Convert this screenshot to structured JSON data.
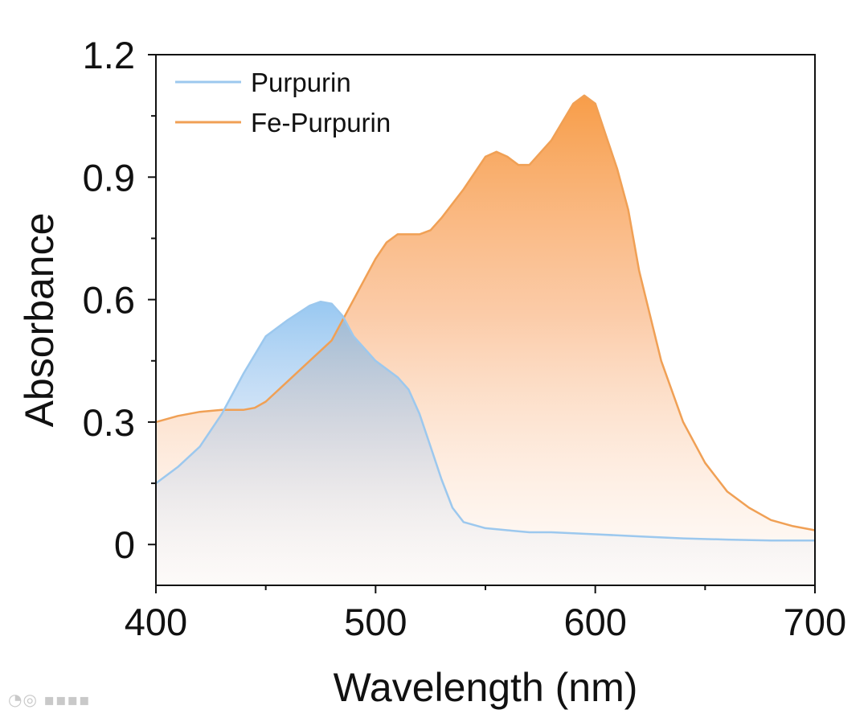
{
  "chart_data": {
    "type": "area",
    "xlabel": "Wavelength (nm)",
    "ylabel": "Absorbance",
    "xlim": [
      400,
      700
    ],
    "ylim": [
      -0.1,
      1.2
    ],
    "xticks": [
      400,
      500,
      600,
      700
    ],
    "xtick_labels": [
      "400",
      "500",
      "600",
      "700"
    ],
    "yticks": [
      0,
      0.3,
      0.6,
      0.9,
      1.2
    ],
    "ytick_labels": [
      "0",
      "0.3",
      "0.6",
      "0.9",
      "1.2"
    ],
    "legend_position": "top-left",
    "series": [
      {
        "name": "Purpurin",
        "color": "#9cc8ee",
        "fill_color": "#7db8ea",
        "x": [
          400,
          410,
          420,
          430,
          440,
          450,
          460,
          470,
          475,
          480,
          485,
          490,
          500,
          510,
          515,
          520,
          525,
          530,
          535,
          540,
          550,
          560,
          570,
          580,
          600,
          620,
          640,
          660,
          680,
          700
        ],
        "y": [
          0.15,
          0.19,
          0.24,
          0.32,
          0.42,
          0.51,
          0.55,
          0.585,
          0.595,
          0.59,
          0.56,
          0.51,
          0.45,
          0.41,
          0.38,
          0.32,
          0.24,
          0.16,
          0.09,
          0.055,
          0.04,
          0.035,
          0.03,
          0.03,
          0.025,
          0.02,
          0.015,
          0.012,
          0.01,
          0.01
        ]
      },
      {
        "name": "Fe-Purpurin",
        "color": "#f0a055",
        "fill_color": "#f7a05c",
        "x": [
          400,
          410,
          420,
          430,
          440,
          445,
          450,
          460,
          470,
          480,
          490,
          500,
          505,
          510,
          520,
          525,
          530,
          540,
          550,
          555,
          560,
          565,
          570,
          580,
          590,
          595,
          600,
          605,
          610,
          615,
          620,
          630,
          640,
          650,
          660,
          670,
          680,
          690,
          700
        ],
        "y": [
          0.3,
          0.315,
          0.325,
          0.33,
          0.33,
          0.335,
          0.35,
          0.4,
          0.45,
          0.5,
          0.6,
          0.7,
          0.74,
          0.76,
          0.76,
          0.77,
          0.8,
          0.87,
          0.95,
          0.962,
          0.95,
          0.93,
          0.93,
          0.99,
          1.08,
          1.1,
          1.08,
          1.0,
          0.92,
          0.82,
          0.67,
          0.45,
          0.3,
          0.2,
          0.13,
          0.09,
          0.06,
          0.045,
          0.035
        ]
      }
    ]
  }
}
